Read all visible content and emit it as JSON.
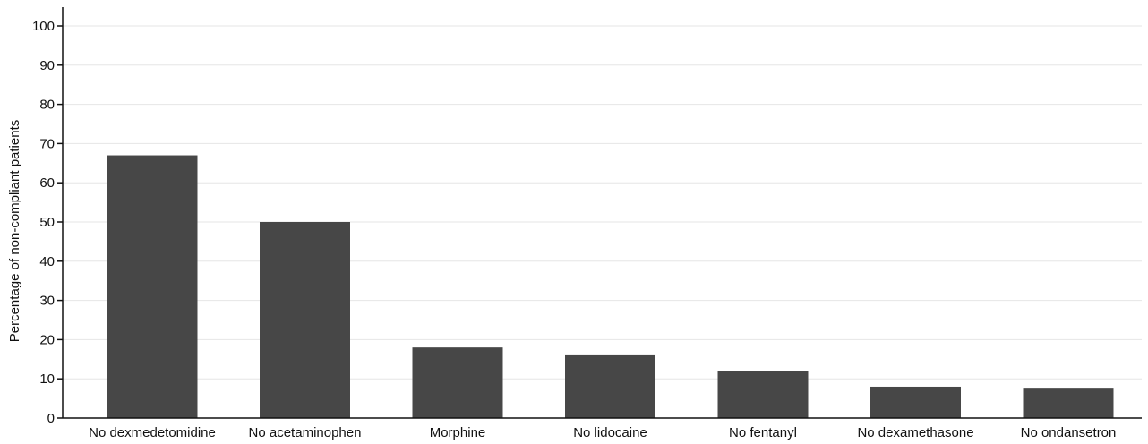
{
  "chart_data": {
    "type": "bar",
    "title": "",
    "xlabel": "",
    "ylabel": "Percentage of non-compliant patients",
    "ylim": [
      0,
      100
    ],
    "yticks": [
      0,
      10,
      20,
      30,
      40,
      50,
      60,
      70,
      80,
      90,
      100
    ],
    "grid": true,
    "bar_color": "#474747",
    "categories": [
      "No dexmedetomidine",
      "No acetaminophen",
      "Morphine",
      "No lidocaine",
      "No fentanyl",
      "No dexamethasone",
      "No ondansetron"
    ],
    "values": [
      67,
      50,
      18,
      16,
      12,
      8,
      7.5
    ]
  }
}
